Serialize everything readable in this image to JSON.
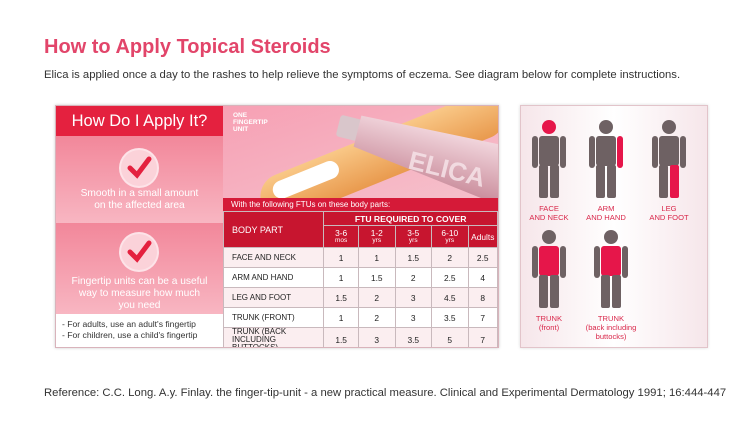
{
  "header": {
    "title": "How to Apply Topical Steroids",
    "intro": "Elica is applied once a day to the rashes to help relieve the symptoms of eczema. See diagram below for complete instructions."
  },
  "panel": {
    "heading": "How Do I Apply It?",
    "steps": [
      [
        "Smooth in a small amount",
        "on the affected area"
      ],
      [
        "Fingertip units can be a useful",
        "way to measure how much",
        "you need"
      ]
    ],
    "notes": [
      "- For adults, use an adult's fingertip",
      "- For children, use a child's fingertip"
    ],
    "illustration": {
      "label": [
        "ONE",
        "FINGERTIP",
        "UNIT"
      ],
      "tube": "ELICA"
    },
    "caption": "With the following FTUs on these body parts:"
  },
  "table": {
    "part_header": "BODY PART",
    "group_header": "FTU REQUIRED TO COVER",
    "columns": [
      [
        "3-6",
        "mos"
      ],
      [
        "1-2",
        "yrs"
      ],
      [
        "3-5",
        "yrs"
      ],
      [
        "6-10",
        "yrs"
      ],
      [
        "Adults"
      ]
    ],
    "rows": [
      {
        "part": [
          "FACE AND NECK"
        ],
        "cells": [
          "1",
          "1",
          "1.5",
          "2",
          "2.5"
        ]
      },
      {
        "part": [
          "ARM AND HAND"
        ],
        "cells": [
          "1",
          "1.5",
          "2",
          "2.5",
          "4"
        ]
      },
      {
        "part": [
          "LEG AND FOOT"
        ],
        "cells": [
          "1.5",
          "2",
          "3",
          "4.5",
          "8"
        ]
      },
      {
        "part": [
          "TRUNK (FRONT)"
        ],
        "cells": [
          "1",
          "2",
          "3",
          "3.5",
          "7"
        ]
      },
      {
        "part": [
          "TRUNK (BACK",
          "INCLUDING BUTTOCKS)"
        ],
        "cells": [
          "1.5",
          "3",
          "3.5",
          "5",
          "7"
        ]
      }
    ]
  },
  "figures": [
    {
      "label": [
        "FACE",
        "AND NECK"
      ]
    },
    {
      "label": [
        "ARM",
        "AND HAND"
      ]
    },
    {
      "label": [
        "LEG",
        "AND FOOT"
      ]
    },
    {
      "label": [
        "TRUNK",
        "(front)"
      ]
    },
    {
      "label": [
        "TRUNK",
        "(back including",
        "buttocks)"
      ]
    }
  ],
  "footer": {
    "reference": "Reference: C.C. Long. A.y. Finlay. the finger-tip-unit - a new practical measure. Clinical and Experimental Dermatology 1991; 16:444-447"
  }
}
